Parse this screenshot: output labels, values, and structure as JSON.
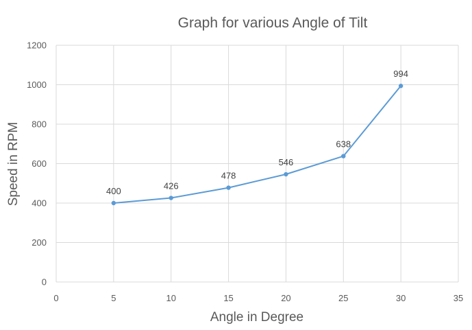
{
  "chart_data": {
    "type": "line",
    "title": "Graph for various Angle of Tilt",
    "xlabel": "Angle in Degree",
    "ylabel": "Speed in RPM",
    "xlim": [
      0,
      35
    ],
    "ylim": [
      0,
      1200
    ],
    "x_ticks": [
      0,
      5,
      10,
      15,
      20,
      25,
      30,
      35
    ],
    "y_ticks": [
      0,
      200,
      400,
      600,
      800,
      1000,
      1200
    ],
    "grid": true,
    "legend": "none",
    "series": [
      {
        "color": "#5b9bd5",
        "x": [
          5,
          10,
          15,
          20,
          25,
          30
        ],
        "y": [
          400,
          426,
          478,
          546,
          638,
          994
        ],
        "labels": [
          "400",
          "426",
          "478",
          "546",
          "638",
          "994"
        ]
      }
    ]
  }
}
